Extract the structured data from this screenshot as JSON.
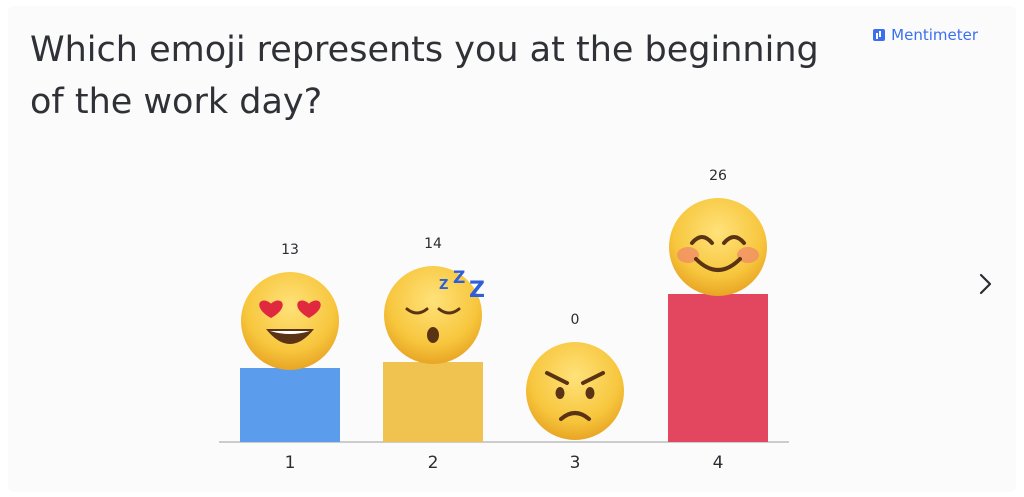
{
  "slide": {
    "title": "Which emoji represents you at the beginning of the work day?",
    "brand": "Mentimeter",
    "brand_color": "#3b6ff0",
    "next_icon": "chevron-right-icon"
  },
  "chart_data": {
    "type": "bar",
    "title": "Which emoji represents you at the beginning of the work day?",
    "xlabel": "",
    "ylabel": "",
    "categories": [
      "1",
      "2",
      "3",
      "4"
    ],
    "values": [
      13,
      14,
      0,
      26
    ],
    "colors": [
      "#5b9cec",
      "#f0c24f",
      "#9aa0a6",
      "#e2475f"
    ],
    "emojis": [
      "heart-eyes",
      "sleepy-zzz",
      "angry",
      "smiling-blush"
    ],
    "ylim": [
      0,
      26
    ],
    "grid": false,
    "legend": "none"
  }
}
